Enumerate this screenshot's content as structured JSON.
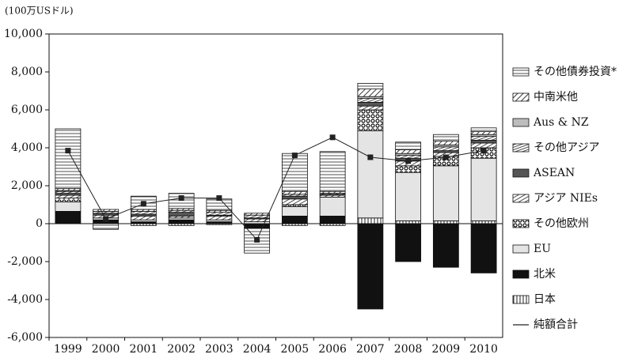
{
  "chart_data": {
    "type": "stacked_bar_line",
    "y_label": "(100万USドル)",
    "categories": [
      "1999",
      "2000",
      "2001",
      "2002",
      "2003",
      "2004",
      "2005",
      "2006",
      "2007",
      "2008",
      "2009",
      "2010"
    ],
    "ylim": [
      -6000,
      10000
    ],
    "yticks": [
      {
        "value": -6000,
        "label": "-6,000"
      },
      {
        "value": -4000,
        "label": "-4,000"
      },
      {
        "value": -2000,
        "label": "-2,000"
      },
      0,
      {
        "value": 2000,
        "label": "2,000"
      },
      {
        "value": 4000,
        "label": "4,000"
      },
      {
        "value": 6000,
        "label": "6,000"
      },
      {
        "value": 8000,
        "label": "8,000"
      },
      {
        "value": 10000,
        "label": "10,000"
      }
    ],
    "series": [
      {
        "name": "日本",
        "color": "#ffffff",
        "pattern": "vlines",
        "values": [
          0,
          0,
          -100,
          -100,
          -50,
          0,
          -100,
          -100,
          300,
          150,
          150,
          150
        ]
      },
      {
        "name": "北米",
        "color": "#111111",
        "pattern": "solid",
        "values": [
          650,
          200,
          100,
          200,
          100,
          -250,
          400,
          400,
          -4500,
          -2000,
          -2300,
          -2600
        ]
      },
      {
        "name": "EU",
        "color": "#e4e4e4",
        "pattern": "solid",
        "values": [
          500,
          100,
          100,
          100,
          100,
          100,
          500,
          1000,
          4600,
          2550,
          2900,
          3300
        ]
      },
      {
        "name": "その他欧州",
        "color": "#ffffff",
        "pattern": "dots",
        "values": [
          200,
          0,
          0,
          0,
          0,
          0,
          100,
          0,
          1100,
          350,
          500,
          550
        ]
      },
      {
        "name": "アジア NIEs",
        "color": "#ffffff",
        "pattern": "diag",
        "values": [
          150,
          150,
          200,
          100,
          200,
          150,
          300,
          100,
          200,
          250,
          200,
          250
        ]
      },
      {
        "name": "ASEAN",
        "color": "#555555",
        "pattern": "solid",
        "values": [
          100,
          100,
          100,
          200,
          50,
          50,
          150,
          50,
          200,
          150,
          100,
          150
        ]
      },
      {
        "name": "その他アジア",
        "color": "#ffffff",
        "pattern": "diagdense",
        "values": [
          100,
          100,
          150,
          100,
          150,
          150,
          100,
          50,
          200,
          150,
          200,
          200
        ]
      },
      {
        "name": "Aus & NZ",
        "color": "#bdbdbd",
        "pattern": "solid",
        "values": [
          50,
          0,
          0,
          0,
          0,
          0,
          0,
          0,
          100,
          100,
          100,
          100
        ]
      },
      {
        "name": "中南米他",
        "color": "#ffffff",
        "pattern": "diagwide",
        "values": [
          100,
          100,
          100,
          100,
          100,
          100,
          150,
          100,
          400,
          200,
          200,
          150
        ]
      },
      {
        "name": "その他債券投資*",
        "color": "#ffffff",
        "pattern": "hlines",
        "values": [
          3150,
          -300,
          700,
          800,
          600,
          -1300,
          2000,
          2100,
          300,
          400,
          350,
          200
        ]
      }
    ],
    "net": {
      "name": "純額合計",
      "color": "#222222",
      "values": [
        3850,
        250,
        1050,
        1350,
        1350,
        -850,
        3600,
        4550,
        3500,
        3300,
        3500,
        3850
      ]
    }
  }
}
